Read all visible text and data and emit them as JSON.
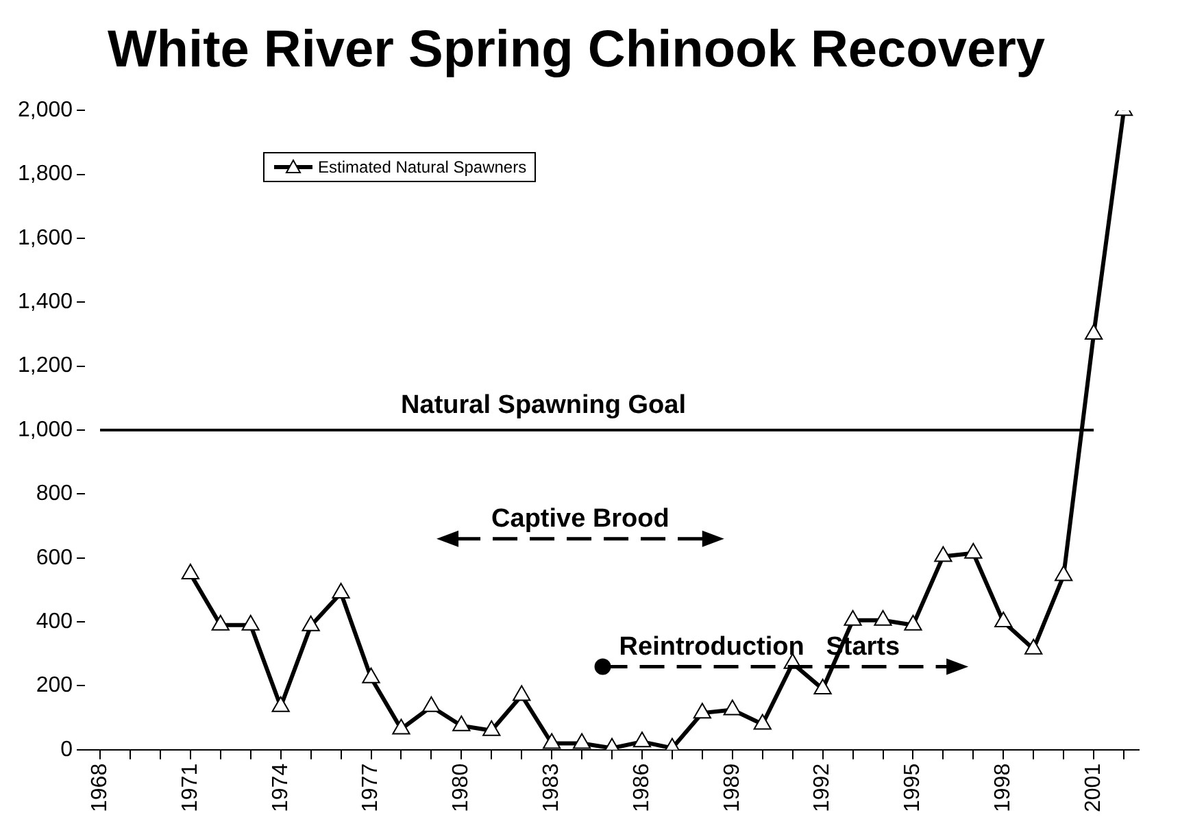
{
  "chart_data": {
    "type": "line",
    "title": "White River Spring Chinook Recovery",
    "x": [
      1971,
      1972,
      1973,
      1974,
      1975,
      1976,
      1977,
      1978,
      1979,
      1980,
      1981,
      1982,
      1983,
      1984,
      1985,
      1986,
      1987,
      1988,
      1989,
      1990,
      1991,
      1992,
      1993,
      1994,
      1995,
      1996,
      1997,
      1998,
      1999,
      2000,
      2001,
      2002
    ],
    "series": [
      {
        "name": "Estimated Natural Spawners",
        "color": "#000000",
        "values": [
          550,
          390,
          390,
          135,
          388,
          490,
          225,
          65,
          135,
          75,
          60,
          170,
          20,
          20,
          5,
          25,
          5,
          115,
          125,
          80,
          270,
          190,
          405,
          405,
          390,
          605,
          615,
          400,
          315,
          545,
          1300,
          2000
        ]
      }
    ],
    "xlim": [
      1967.5,
      2002.5
    ],
    "xticks": [
      1968,
      {
        "value": 1969,
        "label": null
      },
      {
        "value": 1970,
        "label": null
      },
      1971,
      {
        "value": 1972,
        "label": null
      },
      {
        "value": 1973,
        "label": null
      },
      1974,
      {
        "value": 1975,
        "label": null
      },
      {
        "value": 1976,
        "label": null
      },
      1977,
      {
        "value": 1978,
        "label": null
      },
      {
        "value": 1979,
        "label": null
      },
      1980,
      {
        "value": 1981,
        "label": null
      },
      {
        "value": 1982,
        "label": null
      },
      1983,
      {
        "value": 1984,
        "label": null
      },
      {
        "value": 1985,
        "label": null
      },
      1986,
      {
        "value": 1987,
        "label": null
      },
      {
        "value": 1988,
        "label": null
      },
      1989,
      {
        "value": 1990,
        "label": null
      },
      {
        "value": 1991,
        "label": null
      },
      1992,
      {
        "value": 1993,
        "label": null
      },
      {
        "value": 1994,
        "label": null
      },
      1995,
      {
        "value": 1996,
        "label": null
      },
      {
        "value": 1997,
        "label": null
      },
      1998,
      {
        "value": 1999,
        "label": null
      },
      {
        "value": 2000,
        "label": null
      },
      2001,
      {
        "value": 2002,
        "label": null
      }
    ],
    "ylim": [
      0,
      2000
    ],
    "yticks": [
      0,
      200,
      400,
      600,
      800,
      {
        "value": 1000,
        "label": "1,000"
      },
      {
        "value": 1200,
        "label": "1,200"
      },
      {
        "value": 1400,
        "label": "1,400"
      },
      {
        "value": 1600,
        "label": "1,600"
      },
      {
        "value": 1800,
        "label": "1,800"
      },
      {
        "value": 2000,
        "label": "2,000"
      }
    ],
    "ref_lines": [
      {
        "axis": "y",
        "value": 1000,
        "label": "Natural Spawning Goal",
        "color": "#000000"
      }
    ],
    "annotations": [
      "Captive Brood",
      "Reintroduction   Starts"
    ],
    "marker": "triangle",
    "line_style": "solid",
    "grid": false,
    "legend": "top left"
  }
}
